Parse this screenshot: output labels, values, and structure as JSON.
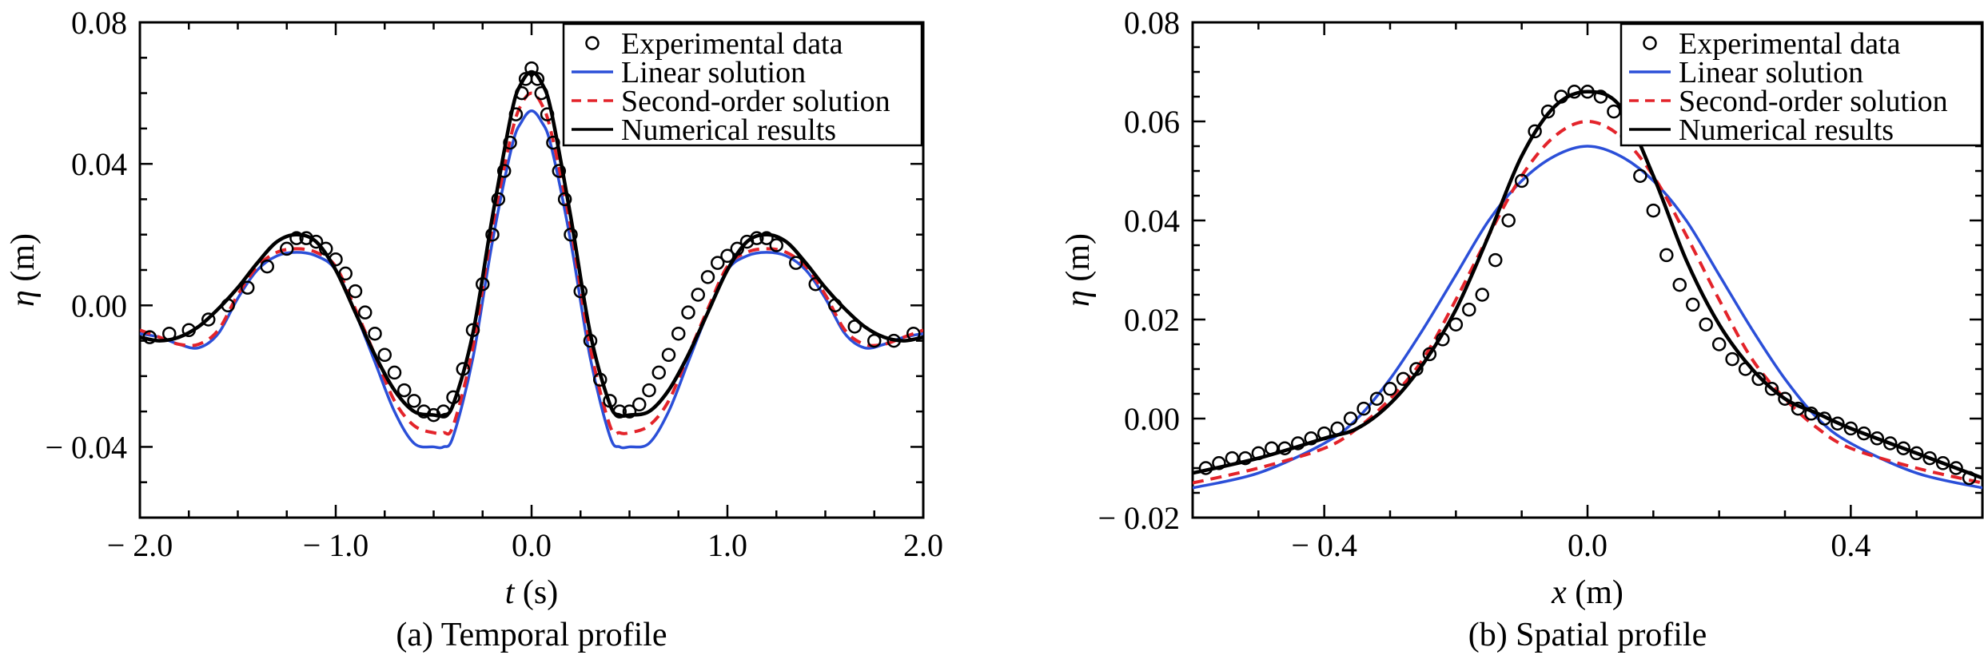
{
  "figure": {
    "legend_labels": [
      "Experimental data",
      "Linear solution",
      "Second-order solution",
      "Numerical results"
    ]
  },
  "colors": {
    "linear": "#2b4fd8",
    "second": "#e3232a",
    "numerical": "#000000",
    "experimental": "#000000"
  },
  "chart_data": [
    {
      "type": "line",
      "caption": "(a) Temporal profile",
      "xlabel_var": "t",
      "xlabel_unit": " (s)",
      "ylabel_var": "η",
      "ylabel_unit": " (m)",
      "xlim": [
        -2.0,
        2.0
      ],
      "ylim": [
        -0.06,
        0.08
      ],
      "xticks": [
        -2.0,
        -1.0,
        0.0,
        1.0,
        2.0
      ],
      "xtick_labels": [
        "− 2.0",
        "− 1.0",
        "0.0",
        "1.0",
        "2.0"
      ],
      "yticks": [
        -0.04,
        0.0,
        0.04,
        0.08
      ],
      "ytick_labels": [
        "− 0.04",
        "0.00",
        "0.04",
        "0.08"
      ],
      "legend": "top-right",
      "series": [
        {
          "name": "Linear solution",
          "style": "solid",
          "color": "#2b4fd8",
          "x": [
            -2.0,
            -1.9,
            -1.8,
            -1.7,
            -1.6,
            -1.5,
            -1.4,
            -1.3,
            -1.2,
            -1.1,
            -1.0,
            -0.9,
            -0.8,
            -0.7,
            -0.6,
            -0.5,
            -0.45,
            -0.4,
            -0.3,
            -0.2,
            -0.1,
            -0.05,
            0.0,
            0.05,
            0.1,
            0.2,
            0.3,
            0.4,
            0.45,
            0.5,
            0.6,
            0.7,
            0.8,
            0.9,
            1.0,
            1.1,
            1.2,
            1.3,
            1.4,
            1.5,
            1.6,
            1.7,
            1.8,
            1.9,
            2.0
          ],
          "y": [
            -0.008,
            -0.009,
            -0.011,
            -0.012,
            -0.008,
            0.002,
            0.01,
            0.014,
            0.015,
            0.014,
            0.01,
            -0.002,
            -0.016,
            -0.03,
            -0.039,
            -0.04,
            -0.04,
            -0.037,
            -0.015,
            0.018,
            0.045,
            0.052,
            0.055,
            0.052,
            0.045,
            0.018,
            -0.015,
            -0.037,
            -0.04,
            -0.04,
            -0.039,
            -0.03,
            -0.016,
            -0.002,
            0.01,
            0.014,
            0.015,
            0.014,
            0.01,
            0.002,
            -0.008,
            -0.012,
            -0.011,
            -0.009,
            -0.008
          ]
        },
        {
          "name": "Second-order solution",
          "style": "dashed",
          "color": "#e3232a",
          "x": [
            -2.0,
            -1.9,
            -1.8,
            -1.7,
            -1.6,
            -1.5,
            -1.4,
            -1.3,
            -1.2,
            -1.1,
            -1.0,
            -0.9,
            -0.8,
            -0.7,
            -0.6,
            -0.5,
            -0.45,
            -0.4,
            -0.3,
            -0.2,
            -0.1,
            -0.05,
            0.0,
            0.05,
            0.1,
            0.2,
            0.3,
            0.4,
            0.45,
            0.5,
            0.6,
            0.7,
            0.8,
            0.9,
            1.0,
            1.1,
            1.2,
            1.3,
            1.4,
            1.5,
            1.6,
            1.7,
            1.8,
            1.9,
            2.0
          ],
          "y": [
            -0.007,
            -0.009,
            -0.011,
            -0.011,
            -0.007,
            0.003,
            0.011,
            0.015,
            0.016,
            0.015,
            0.011,
            -0.001,
            -0.014,
            -0.027,
            -0.034,
            -0.036,
            -0.036,
            -0.034,
            -0.012,
            0.022,
            0.049,
            0.057,
            0.06,
            0.057,
            0.049,
            0.022,
            -0.012,
            -0.034,
            -0.036,
            -0.036,
            -0.034,
            -0.027,
            -0.014,
            -0.001,
            0.011,
            0.015,
            0.016,
            0.015,
            0.011,
            0.003,
            -0.007,
            -0.011,
            -0.011,
            -0.009,
            -0.007
          ]
        },
        {
          "name": "Numerical results",
          "style": "solid",
          "color": "#000000",
          "x": [
            -2.0,
            -1.9,
            -1.8,
            -1.7,
            -1.6,
            -1.5,
            -1.4,
            -1.3,
            -1.2,
            -1.1,
            -1.0,
            -0.9,
            -0.8,
            -0.7,
            -0.6,
            -0.5,
            -0.45,
            -0.4,
            -0.3,
            -0.2,
            -0.1,
            -0.05,
            0.0,
            0.05,
            0.1,
            0.2,
            0.3,
            0.4,
            0.45,
            0.5,
            0.6,
            0.7,
            0.8,
            0.9,
            1.0,
            1.1,
            1.2,
            1.3,
            1.4,
            1.5,
            1.6,
            1.7,
            1.8,
            1.9,
            2.0
          ],
          "y": [
            -0.009,
            -0.01,
            -0.009,
            -0.006,
            -0.001,
            0.005,
            0.012,
            0.018,
            0.02,
            0.018,
            0.01,
            -0.002,
            -0.014,
            -0.024,
            -0.03,
            -0.031,
            -0.031,
            -0.028,
            -0.008,
            0.025,
            0.055,
            0.063,
            0.066,
            0.063,
            0.055,
            0.025,
            -0.008,
            -0.028,
            -0.031,
            -0.031,
            -0.03,
            -0.024,
            -0.014,
            -0.002,
            0.01,
            0.018,
            0.02,
            0.018,
            0.012,
            0.005,
            -0.001,
            -0.006,
            -0.009,
            -0.01,
            -0.009
          ]
        },
        {
          "name": "Experimental data",
          "style": "markers",
          "color": "#000000",
          "x": [
            -1.95,
            -1.85,
            -1.75,
            -1.65,
            -1.55,
            -1.45,
            -1.35,
            -1.25,
            -1.2,
            -1.15,
            -1.1,
            -1.05,
            -1.0,
            -0.95,
            -0.9,
            -0.85,
            -0.8,
            -0.75,
            -0.7,
            -0.65,
            -0.6,
            -0.55,
            -0.5,
            -0.45,
            -0.4,
            -0.35,
            -0.3,
            -0.25,
            -0.2,
            -0.17,
            -0.14,
            -0.11,
            -0.08,
            -0.05,
            -0.03,
            0.0,
            0.03,
            0.05,
            0.08,
            0.11,
            0.14,
            0.17,
            0.2,
            0.25,
            0.3,
            0.35,
            0.4,
            0.45,
            0.5,
            0.55,
            0.6,
            0.65,
            0.7,
            0.75,
            0.8,
            0.85,
            0.9,
            0.95,
            1.0,
            1.05,
            1.1,
            1.15,
            1.2,
            1.25,
            1.35,
            1.45,
            1.55,
            1.65,
            1.75,
            1.85,
            1.95
          ],
          "y": [
            -0.009,
            -0.008,
            -0.007,
            -0.004,
            0.0,
            0.005,
            0.011,
            0.016,
            0.019,
            0.019,
            0.018,
            0.016,
            0.013,
            0.009,
            0.004,
            -0.002,
            -0.008,
            -0.014,
            -0.019,
            -0.024,
            -0.027,
            -0.03,
            -0.031,
            -0.03,
            -0.026,
            -0.018,
            -0.007,
            0.006,
            0.02,
            0.03,
            0.038,
            0.046,
            0.054,
            0.06,
            0.064,
            0.067,
            0.064,
            0.06,
            0.054,
            0.046,
            0.038,
            0.03,
            0.02,
            0.004,
            -0.01,
            -0.021,
            -0.027,
            -0.03,
            -0.03,
            -0.028,
            -0.024,
            -0.019,
            -0.014,
            -0.008,
            -0.002,
            0.003,
            0.008,
            0.012,
            0.014,
            0.016,
            0.018,
            0.019,
            0.019,
            0.017,
            0.012,
            0.006,
            0.0,
            -0.006,
            -0.01,
            -0.01,
            -0.008
          ]
        }
      ]
    },
    {
      "type": "line",
      "caption": "(b) Spatial profile",
      "xlabel_var": "x",
      "xlabel_unit": " (m)",
      "ylabel_var": "η",
      "ylabel_unit": " (m)",
      "xlim": [
        -0.6,
        0.6
      ],
      "ylim": [
        -0.02,
        0.08
      ],
      "xticks": [
        -0.4,
        0.0,
        0.4
      ],
      "xtick_labels": [
        "− 0.4",
        "0.0",
        "0.4"
      ],
      "yticks": [
        -0.02,
        0.0,
        0.02,
        0.04,
        0.06,
        0.08
      ],
      "ytick_labels": [
        "− 0.02",
        "0.00",
        "0.02",
        "0.04",
        "0.06",
        "0.08"
      ],
      "legend": "top-right",
      "series": [
        {
          "name": "Linear solution",
          "style": "solid",
          "color": "#2b4fd8",
          "x": [
            -0.6,
            -0.5,
            -0.4,
            -0.35,
            -0.3,
            -0.25,
            -0.2,
            -0.15,
            -0.1,
            -0.05,
            0.0,
            0.05,
            0.1,
            0.15,
            0.2,
            0.25,
            0.3,
            0.35,
            0.4,
            0.5,
            0.6
          ],
          "y": [
            -0.014,
            -0.011,
            -0.005,
            0.0,
            0.008,
            0.018,
            0.029,
            0.04,
            0.048,
            0.053,
            0.055,
            0.053,
            0.048,
            0.04,
            0.029,
            0.018,
            0.008,
            0.0,
            -0.005,
            -0.011,
            -0.014
          ]
        },
        {
          "name": "Second-order solution",
          "style": "dashed",
          "color": "#e3232a",
          "x": [
            -0.6,
            -0.5,
            -0.4,
            -0.35,
            -0.3,
            -0.25,
            -0.2,
            -0.15,
            -0.1,
            -0.05,
            0.0,
            0.05,
            0.1,
            0.15,
            0.2,
            0.25,
            0.3,
            0.35,
            0.4,
            0.5,
            0.6
          ],
          "y": [
            -0.013,
            -0.01,
            -0.006,
            -0.002,
            0.004,
            0.012,
            0.024,
            0.037,
            0.049,
            0.057,
            0.06,
            0.057,
            0.049,
            0.037,
            0.024,
            0.012,
            0.004,
            -0.002,
            -0.006,
            -0.01,
            -0.013
          ]
        },
        {
          "name": "Numerical results",
          "style": "solid",
          "color": "#000000",
          "x": [
            -0.6,
            -0.5,
            -0.4,
            -0.35,
            -0.3,
            -0.25,
            -0.2,
            -0.15,
            -0.1,
            -0.05,
            0.0,
            0.05,
            0.1,
            0.15,
            0.2,
            0.25,
            0.3,
            0.35,
            0.4,
            0.5,
            0.6
          ],
          "y": [
            -0.011,
            -0.008,
            -0.004,
            -0.002,
            0.003,
            0.011,
            0.022,
            0.037,
            0.053,
            0.063,
            0.066,
            0.063,
            0.049,
            0.032,
            0.019,
            0.01,
            0.004,
            0.001,
            -0.002,
            -0.007,
            -0.012
          ]
        },
        {
          "name": "Experimental data",
          "style": "markers",
          "color": "#000000",
          "x": [
            -0.58,
            -0.56,
            -0.54,
            -0.52,
            -0.5,
            -0.48,
            -0.46,
            -0.44,
            -0.42,
            -0.4,
            -0.38,
            -0.36,
            -0.34,
            -0.32,
            -0.3,
            -0.28,
            -0.26,
            -0.24,
            -0.22,
            -0.2,
            -0.18,
            -0.16,
            -0.14,
            -0.12,
            -0.1,
            -0.08,
            -0.06,
            -0.04,
            -0.02,
            0.0,
            0.02,
            0.04,
            0.06,
            0.08,
            0.1,
            0.12,
            0.14,
            0.16,
            0.18,
            0.2,
            0.22,
            0.24,
            0.26,
            0.28,
            0.3,
            0.32,
            0.34,
            0.36,
            0.38,
            0.4,
            0.42,
            0.44,
            0.46,
            0.48,
            0.5,
            0.52,
            0.54,
            0.56,
            0.58
          ],
          "y": [
            -0.01,
            -0.009,
            -0.008,
            -0.008,
            -0.007,
            -0.006,
            -0.006,
            -0.005,
            -0.004,
            -0.003,
            -0.002,
            0.0,
            0.002,
            0.004,
            0.006,
            0.008,
            0.01,
            0.013,
            0.016,
            0.019,
            0.022,
            0.025,
            0.032,
            0.04,
            0.048,
            0.058,
            0.062,
            0.065,
            0.066,
            0.066,
            0.065,
            0.062,
            0.057,
            0.049,
            0.042,
            0.033,
            0.027,
            0.023,
            0.019,
            0.015,
            0.012,
            0.01,
            0.008,
            0.006,
            0.004,
            0.002,
            0.001,
            0.0,
            -0.001,
            -0.002,
            -0.003,
            -0.004,
            -0.005,
            -0.006,
            -0.007,
            -0.008,
            -0.009,
            -0.01,
            -0.012
          ]
        }
      ]
    }
  ]
}
